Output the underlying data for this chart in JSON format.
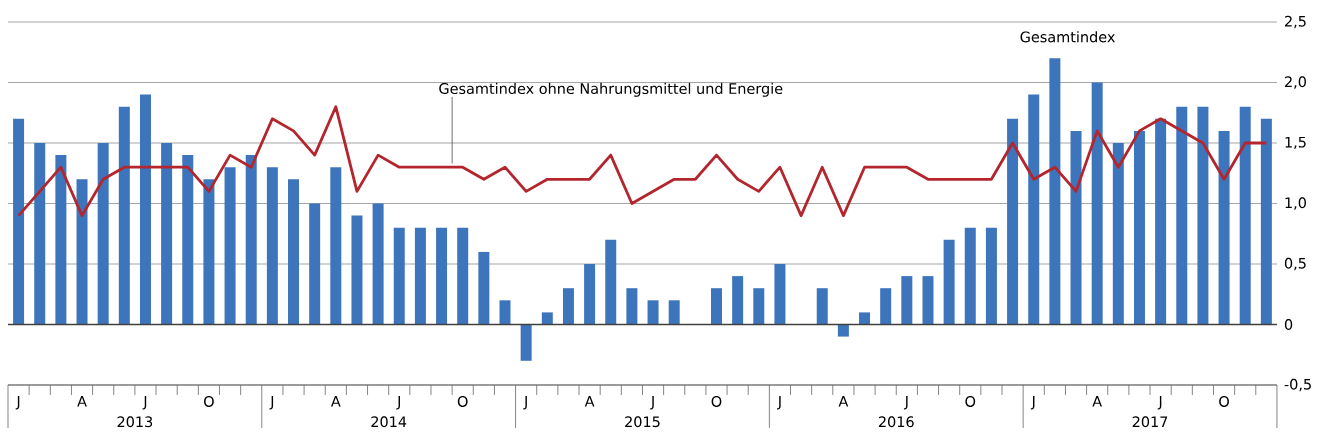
{
  "chart_data": {
    "type": "bar",
    "categories": [
      "J",
      null,
      null,
      "A",
      null,
      null,
      "J",
      null,
      null,
      "O",
      null,
      null,
      "J",
      null,
      null,
      "A",
      null,
      null,
      "J",
      null,
      null,
      "O",
      null,
      null,
      "J",
      null,
      null,
      "A",
      null,
      null,
      "J",
      null,
      null,
      "O",
      null,
      null,
      "J",
      null,
      null,
      "A",
      null,
      null,
      "J",
      null,
      null,
      "O",
      null,
      null,
      "J",
      null,
      null,
      "A",
      null,
      null,
      "J",
      null,
      null,
      "O",
      null,
      null
    ],
    "series": [
      {
        "name": "Gesamtindex",
        "color": "#3d75bc",
        "values": [
          1.7,
          1.5,
          1.4,
          1.2,
          1.5,
          1.8,
          1.9,
          1.5,
          1.4,
          1.2,
          1.3,
          1.4,
          1.3,
          1.2,
          1.0,
          1.3,
          0.9,
          1.0,
          0.8,
          0.8,
          0.8,
          0.8,
          0.6,
          0.2,
          -0.3,
          0.1,
          0.3,
          0.5,
          0.7,
          0.3,
          0.2,
          0.2,
          0.0,
          0.3,
          0.4,
          0.3,
          0.5,
          0.0,
          0.3,
          -0.1,
          0.1,
          0.3,
          0.4,
          0.4,
          0.7,
          0.8,
          0.8,
          1.7,
          1.9,
          2.2,
          1.6,
          2.0,
          1.5,
          1.6,
          1.7,
          1.8,
          1.8,
          1.6,
          1.8,
          1.7
        ]
      },
      {
        "name": "Gesamtindex ohne Nahrungsmittel und Energie",
        "type": "line",
        "color": "#b3262d",
        "values": [
          0.9,
          1.1,
          1.3,
          0.9,
          1.2,
          1.3,
          1.3,
          1.3,
          1.3,
          1.1,
          1.4,
          1.3,
          1.7,
          1.6,
          1.4,
          1.8,
          1.1,
          1.4,
          1.3,
          1.3,
          1.3,
          1.3,
          1.2,
          1.3,
          1.1,
          1.2,
          1.2,
          1.2,
          1.4,
          1.0,
          1.1,
          1.2,
          1.2,
          1.4,
          1.2,
          1.1,
          1.3,
          0.9,
          1.3,
          0.9,
          1.3,
          1.3,
          1.3,
          1.2,
          1.2,
          1.2,
          1.2,
          1.5,
          1.2,
          1.3,
          1.1,
          1.6,
          1.3,
          1.6,
          1.7,
          1.6,
          1.5,
          1.2,
          1.5,
          1.5
        ]
      }
    ],
    "ylim": [
      -0.5,
      2.5
    ],
    "yticks": [
      {
        "value": -0.5,
        "label": "-0,5"
      },
      0,
      {
        "value": 0.5,
        "label": "0,5"
      },
      {
        "value": 1.0,
        "label": "1,0"
      },
      {
        "value": 1.5,
        "label": "1,5"
      },
      {
        "value": 2.0,
        "label": "2,0"
      },
      {
        "value": 2.5,
        "label": "2,5"
      }
    ],
    "grid": "y",
    "annotations": [
      "2013",
      "2014",
      "2015",
      "2016",
      "2017"
    ]
  }
}
